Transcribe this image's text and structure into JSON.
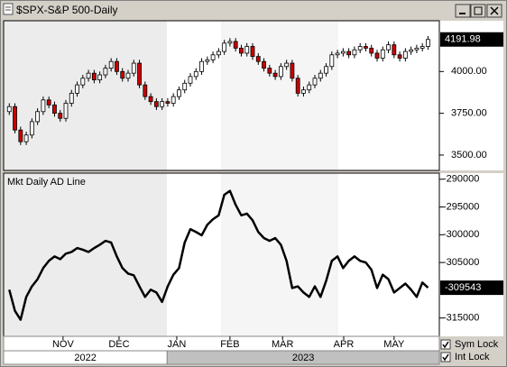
{
  "window": {
    "title": "$SPX-S&P 500-Daily"
  },
  "controls": {
    "sym_lock": "Sym Lock",
    "int_lock": "Int Lock"
  },
  "x_axis": {
    "xlim": [
      0,
      77
    ],
    "xticks": [
      {
        "value": 10.5,
        "label": "NOV"
      },
      {
        "value": 20.4,
        "label": "DEC"
      },
      {
        "value": 30.6,
        "label": "JAN"
      },
      {
        "value": 40.0,
        "label": "FEB"
      },
      {
        "value": 49.3,
        "label": "MAR"
      },
      {
        "value": 60.1,
        "label": "APR"
      },
      {
        "value": 69.0,
        "label": "MAY"
      }
    ],
    "years": [
      {
        "label": "2022",
        "from": 0,
        "to": 28.9
      },
      {
        "label": "2023",
        "from": 28.9,
        "to": 77
      }
    ]
  },
  "chart_data": [
    {
      "type": "candlestick",
      "color_up": "#ffffff",
      "color_down": "#cc0000",
      "x": [
        1,
        2,
        3,
        4,
        5,
        6,
        7,
        8,
        9,
        10,
        11,
        12,
        13,
        14,
        15,
        16,
        17,
        18,
        19,
        20,
        21,
        22,
        23,
        24,
        25,
        26,
        27,
        28,
        29,
        30,
        31,
        32,
        33,
        34,
        35,
        36,
        37,
        38,
        39,
        40,
        41,
        42,
        43,
        44,
        45,
        46,
        47,
        48,
        49,
        50,
        51,
        52,
        53,
        54,
        55,
        56,
        57,
        58,
        59,
        60,
        61,
        62,
        63,
        64,
        65,
        66,
        67,
        68,
        69,
        70,
        71,
        72,
        73,
        74,
        75
      ],
      "open": [
        3760,
        3790,
        3650,
        3580,
        3620,
        3700,
        3760,
        3830,
        3800,
        3750,
        3720,
        3810,
        3870,
        3920,
        3960,
        3990,
        3950,
        3980,
        4020,
        4060,
        4000,
        3960,
        3990,
        4050,
        3920,
        3850,
        3820,
        3790,
        3820,
        3810,
        3850,
        3890,
        3930,
        3970,
        4000,
        4060,
        4070,
        4100,
        4120,
        4170,
        4180,
        4140,
        4110,
        4150,
        4090,
        4060,
        4020,
        3990,
        3970,
        4030,
        4050,
        3960,
        3870,
        3890,
        3920,
        3960,
        3990,
        4030,
        4100,
        4110,
        4120,
        4100,
        4130,
        4150,
        4140,
        4110,
        4080,
        4130,
        4160,
        4100,
        4080,
        4120,
        4130,
        4140,
        4150
      ],
      "high": [
        3810,
        3810,
        3670,
        3640,
        3720,
        3780,
        3850,
        3850,
        3820,
        3770,
        3830,
        3890,
        3940,
        3980,
        4010,
        4010,
        4000,
        4040,
        4080,
        4080,
        4020,
        4010,
        4070,
        4070,
        3940,
        3870,
        3840,
        3840,
        3840,
        3870,
        3910,
        3950,
        3990,
        4020,
        4080,
        4090,
        4120,
        4140,
        4190,
        4200,
        4200,
        4160,
        4170,
        4170,
        4110,
        4080,
        4040,
        4010,
        4050,
        4070,
        4070,
        3980,
        3910,
        3940,
        3980,
        4010,
        4050,
        4120,
        4130,
        4140,
        4140,
        4150,
        4170,
        4170,
        4160,
        4130,
        4150,
        4180,
        4180,
        4120,
        4140,
        4150,
        4160,
        4170,
        4212
      ],
      "low": [
        3740,
        3630,
        3560,
        3560,
        3600,
        3680,
        3740,
        3780,
        3730,
        3700,
        3700,
        3790,
        3850,
        3900,
        3940,
        3930,
        3930,
        3960,
        4000,
        3980,
        3940,
        3940,
        3970,
        3900,
        3830,
        3800,
        3770,
        3770,
        3790,
        3790,
        3830,
        3870,
        3910,
        3950,
        3980,
        4040,
        4050,
        4080,
        4100,
        4150,
        4120,
        4090,
        4090,
        4070,
        4040,
        4000,
        3970,
        3950,
        3950,
        4010,
        3940,
        3850,
        3850,
        3870,
        3900,
        3940,
        3970,
        4010,
        4080,
        4090,
        4080,
        4080,
        4110,
        4120,
        4090,
        4060,
        4060,
        4110,
        4080,
        4060,
        4060,
        4100,
        4110,
        4120,
        4130
      ],
      "close": [
        3790,
        3650,
        3580,
        3620,
        3700,
        3760,
        3830,
        3800,
        3750,
        3720,
        3810,
        3870,
        3920,
        3960,
        3990,
        3950,
        3980,
        4020,
        4060,
        4000,
        3960,
        3990,
        4050,
        3920,
        3850,
        3820,
        3790,
        3820,
        3810,
        3850,
        3890,
        3930,
        3970,
        4000,
        4060,
        4070,
        4100,
        4120,
        4170,
        4180,
        4140,
        4110,
        4150,
        4090,
        4060,
        4020,
        3990,
        3970,
        4030,
        4050,
        3960,
        3870,
        3890,
        3920,
        3960,
        3990,
        4030,
        4100,
        4110,
        4120,
        4100,
        4130,
        4150,
        4140,
        4110,
        4080,
        4130,
        4160,
        4100,
        4080,
        4120,
        4130,
        4140,
        4150,
        4191.98
      ],
      "ylim": [
        3408,
        4304
      ],
      "yticks": [
        {
          "value": 3500,
          "label": "3500.00"
        },
        {
          "value": 3750,
          "label": "3750.00"
        },
        {
          "value": 4000,
          "label": "4000.00"
        }
      ]
    },
    {
      "type": "line",
      "x": [
        1,
        2,
        3,
        4,
        5,
        6,
        7,
        8,
        9,
        10,
        11,
        12,
        13,
        14,
        15,
        16,
        17,
        18,
        19,
        20,
        21,
        22,
        23,
        24,
        25,
        26,
        27,
        28,
        29,
        30,
        31,
        32,
        33,
        34,
        35,
        36,
        37,
        38,
        39,
        40,
        41,
        42,
        43,
        44,
        45,
        46,
        47,
        48,
        49,
        50,
        51,
        52,
        53,
        54,
        55,
        56,
        57,
        58,
        59,
        60,
        61,
        62,
        63,
        64,
        65,
        66,
        67,
        68,
        69,
        70,
        71,
        72,
        73,
        74,
        75
      ],
      "series": [
        {
          "name": "Mkt Daily AD Line",
          "color": "#000000",
          "values": [
            -309900,
            -313700,
            -315300,
            -311200,
            -309300,
            -308000,
            -306000,
            -304700,
            -303900,
            -304400,
            -303400,
            -303100,
            -302400,
            -302700,
            -303100,
            -302400,
            -301800,
            -301100,
            -301400,
            -303900,
            -306000,
            -307000,
            -307300,
            -309300,
            -311200,
            -309900,
            -310400,
            -312100,
            -309300,
            -307200,
            -306000,
            -301400,
            -299000,
            -299500,
            -300100,
            -298200,
            -297200,
            -296500,
            -292800,
            -292100,
            -294600,
            -296500,
            -296200,
            -297400,
            -299500,
            -300600,
            -301100,
            -300600,
            -301800,
            -304700,
            -309600,
            -309300,
            -310400,
            -311200,
            -309300,
            -311200,
            -308300,
            -304700,
            -303900,
            -306000,
            -304700,
            -303900,
            -304700,
            -305000,
            -306300,
            -309600,
            -307200,
            -308000,
            -310400,
            -309600,
            -308800,
            -309900,
            -311200,
            -308600,
            -309543
          ]
        }
      ],
      "ylim": [
        -318300,
        -288900
      ],
      "yticks": [
        -290000,
        -295000,
        -300000,
        -305000,
        -315000
      ]
    }
  ]
}
